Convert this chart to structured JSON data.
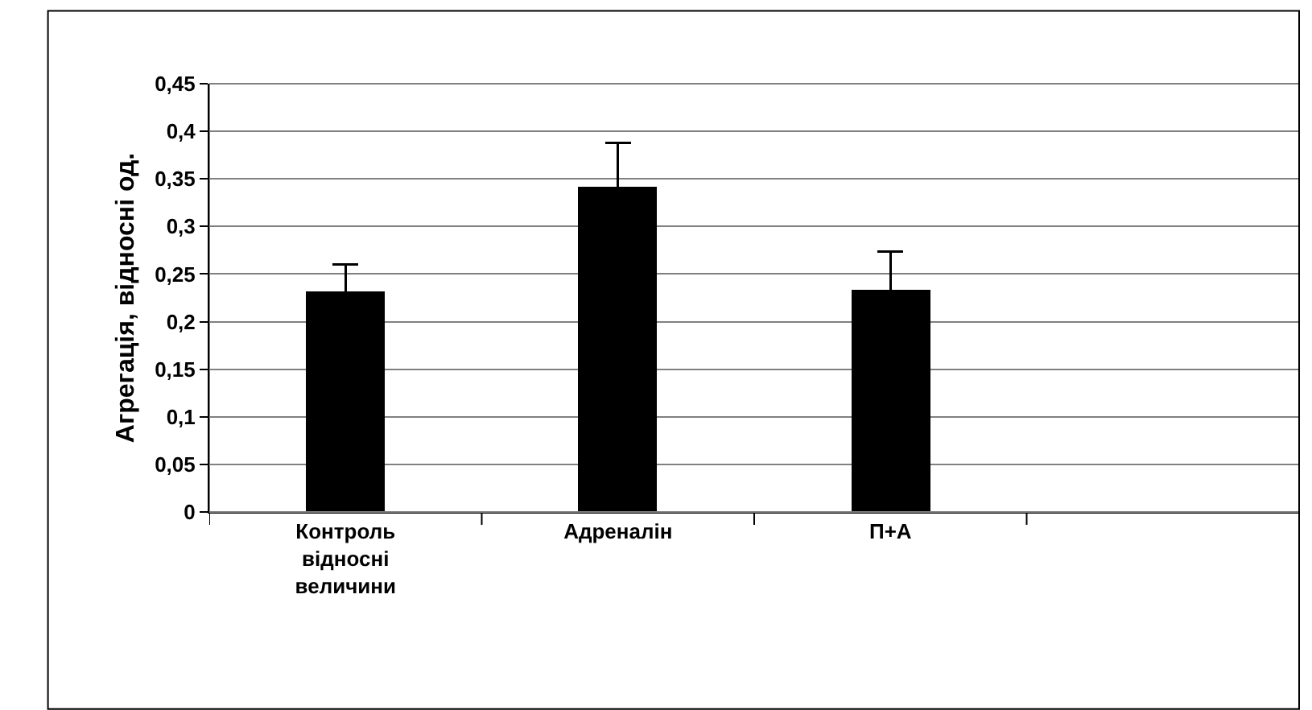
{
  "chart_data": {
    "type": "bar",
    "ylabel": "Агрегація, відносні од.",
    "categories": [
      "Контроль відносні величини",
      "Адреналін",
      "П+А",
      null
    ],
    "series": [
      {
        "color": "#000000",
        "values": [
          0.231,
          0.342,
          0.234,
          null
        ],
        "errors": [
          0.029,
          0.046,
          0.04,
          null
        ]
      }
    ],
    "ylim": [
      0,
      0.45
    ],
    "yticks": [
      0,
      {
        "value": 0.05,
        "label": "0,05"
      },
      {
        "value": 0.1,
        "label": "0,1"
      },
      {
        "value": 0.15,
        "label": "0,15"
      },
      {
        "value": 0.2,
        "label": "0,2"
      },
      {
        "value": 0.25,
        "label": "0,25"
      },
      {
        "value": 0.3,
        "label": "0,3"
      },
      {
        "value": 0.35,
        "label": "0,35"
      },
      {
        "value": 0.4,
        "label": "0,4"
      },
      {
        "value": 0.45,
        "label": "0,45"
      }
    ],
    "grid": "y"
  }
}
